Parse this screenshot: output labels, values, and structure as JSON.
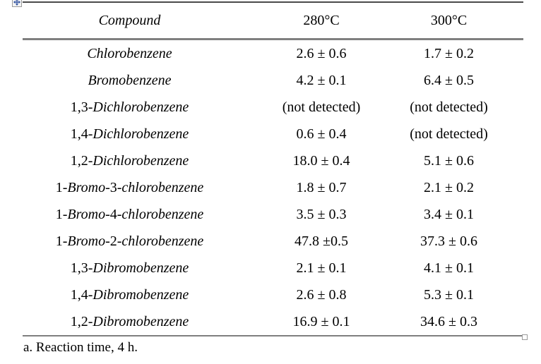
{
  "document": {
    "footnote": "a. Reaction time, 4 h."
  },
  "table": {
    "headers": [
      {
        "text": "Compound",
        "italic": true
      },
      {
        "text": "280°C",
        "italic": false
      },
      {
        "text": "300°C",
        "italic": false
      }
    ],
    "rows": [
      {
        "compound": [
          {
            "text": "Chlorobenzene",
            "italic": true
          }
        ],
        "c280": "2.6 ± 0.6",
        "c300": "1.7 ± 0.2"
      },
      {
        "compound": [
          {
            "text": "Bromobenzene",
            "italic": true
          }
        ],
        "c280": "4.2 ± 0.1",
        "c300": "6.4 ± 0.5"
      },
      {
        "compound": [
          {
            "text": "1,3-",
            "italic": false
          },
          {
            "text": "Dichlorobenzene",
            "italic": true
          }
        ],
        "c280": "(not detected)",
        "c300": "(not detected)"
      },
      {
        "compound": [
          {
            "text": "1,4-",
            "italic": false
          },
          {
            "text": "Dichlorobenzene",
            "italic": true
          }
        ],
        "c280": "0.6 ± 0.4",
        "c300": "(not detected)"
      },
      {
        "compound": [
          {
            "text": "1,2-",
            "italic": false
          },
          {
            "text": "Dichlorobenzene",
            "italic": true
          }
        ],
        "c280": "18.0 ± 0.4",
        "c300": "5.1 ± 0.6"
      },
      {
        "compound": [
          {
            "text": "1-",
            "italic": false
          },
          {
            "text": "Bromo",
            "italic": true
          },
          {
            "text": "-3-",
            "italic": false
          },
          {
            "text": "chlorobenzene",
            "italic": true
          }
        ],
        "c280": "1.8 ± 0.7",
        "c300": "2.1 ± 0.2"
      },
      {
        "compound": [
          {
            "text": "1-",
            "italic": false
          },
          {
            "text": "Bromo",
            "italic": true
          },
          {
            "text": "-4-",
            "italic": false
          },
          {
            "text": "chlorobenzene",
            "italic": true
          }
        ],
        "c280": "3.5 ± 0.3",
        "c300": "3.4 ± 0.1"
      },
      {
        "compound": [
          {
            "text": "1-",
            "italic": false
          },
          {
            "text": "Bromo",
            "italic": true
          },
          {
            "text": "-2-",
            "italic": false
          },
          {
            "text": "chlorobenzene",
            "italic": true
          }
        ],
        "c280": "47.8 ±0.5",
        "c300": "37.3 ± 0.6"
      },
      {
        "compound": [
          {
            "text": "1,3-",
            "italic": false
          },
          {
            "text": "Dibromobenzene",
            "italic": true
          }
        ],
        "c280": "2.1 ± 0.1",
        "c300": "4.1 ± 0.1"
      },
      {
        "compound": [
          {
            "text": "1,4-",
            "italic": false
          },
          {
            "text": "Dibromobenzene",
            "italic": true
          }
        ],
        "c280": "2.6 ± 0.8",
        "c300": "5.3 ± 0.1"
      },
      {
        "compound": [
          {
            "text": "1,2-",
            "italic": false
          },
          {
            "text": "Dibromobenzene",
            "italic": true
          }
        ],
        "c280": "16.9 ± 0.1",
        "c300": "34.6 ± 0.3"
      }
    ]
  },
  "icons": {
    "move_handle": "table-move-handle",
    "resize_handle": "table-resize-handle"
  },
  "colors": {
    "rule_top": "#4a4a4a",
    "rule_gray": "#7f7f7f",
    "handle_border": "#9b9b9b",
    "move_arrow": "#2c4f9e",
    "text": "#000000",
    "background": "#ffffff"
  }
}
